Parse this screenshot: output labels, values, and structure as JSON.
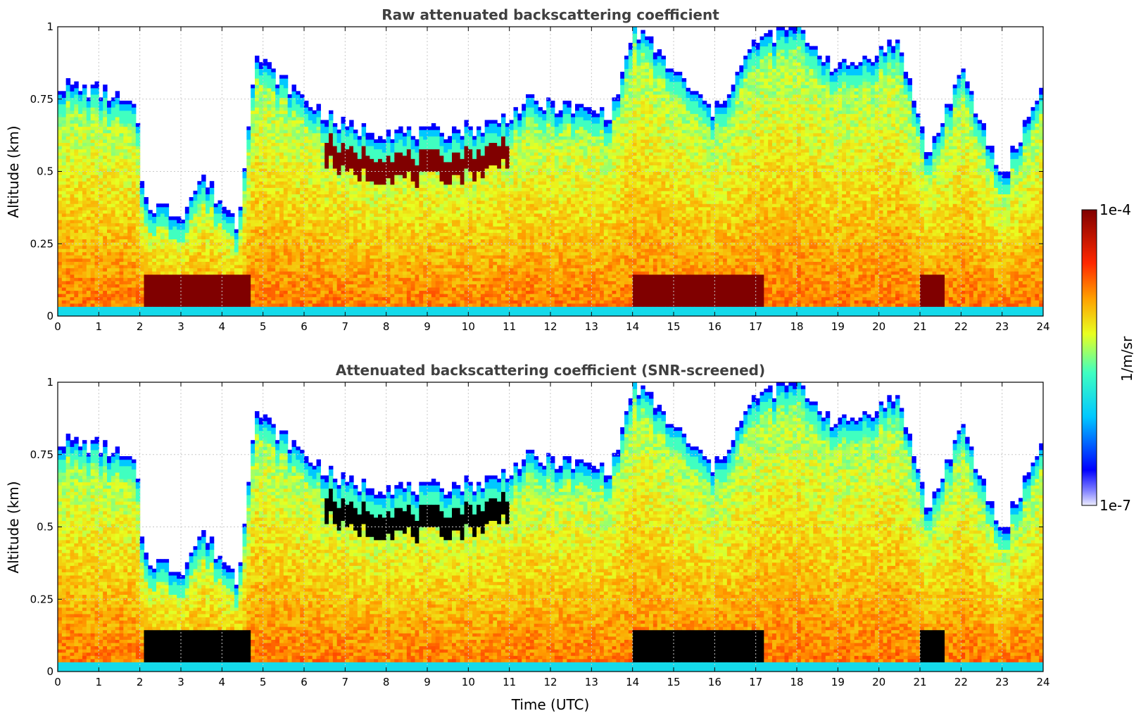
{
  "figure": {
    "xlabel": "Time (UTC)",
    "colorbar": {
      "label": "1/m/sr",
      "max_label": "1e-4",
      "min_label": "1e-7",
      "scale": "log"
    }
  },
  "chart_data": [
    {
      "type": "heatmap",
      "title": "Raw attenuated backscattering coefficient",
      "ylabel": "Altitude (km)",
      "xlabel": "",
      "xlim": [
        0,
        24
      ],
      "ylim": [
        0,
        1
      ],
      "xticks": [
        "0",
        "1",
        "2",
        "3",
        "4",
        "5",
        "6",
        "7",
        "8",
        "9",
        "10",
        "11",
        "12",
        "13",
        "14",
        "15",
        "16",
        "17",
        "18",
        "19",
        "20",
        "21",
        "22",
        "23",
        "24"
      ],
      "yticks": [
        "0",
        "0.25",
        "0.5",
        "0.75",
        "1"
      ],
      "grid": true,
      "saturated_color": "#800000",
      "approx_profile": {
        "x_hours": [
          0,
          1,
          1.9,
          2.1,
          3,
          3.5,
          4.4,
          4.8,
          6,
          7,
          9,
          10.5,
          11.5,
          13.5,
          14.05,
          15,
          16,
          17,
          18,
          19,
          20.5,
          21.2,
          22,
          23,
          24
        ],
        "cloud_top_km": [
          0.8,
          0.78,
          0.72,
          0.4,
          0.35,
          0.48,
          0.32,
          0.9,
          0.75,
          0.65,
          0.63,
          0.66,
          0.74,
          0.7,
          1.0,
          0.85,
          0.7,
          0.95,
          1.0,
          0.85,
          0.95,
          0.55,
          0.85,
          0.48,
          0.8
        ]
      }
    },
    {
      "type": "heatmap",
      "title": "Attenuated backscattering coefficient (SNR-screened)",
      "ylabel": "Altitude (km)",
      "xlabel": "Time (UTC)",
      "xlim": [
        0,
        24
      ],
      "ylim": [
        0,
        1
      ],
      "xticks": [
        "0",
        "1",
        "2",
        "3",
        "4",
        "5",
        "6",
        "7",
        "8",
        "9",
        "10",
        "11",
        "12",
        "13",
        "14",
        "15",
        "16",
        "17",
        "18",
        "19",
        "20",
        "21",
        "22",
        "23",
        "24"
      ],
      "yticks": [
        "0",
        "0.25",
        "0.5",
        "0.75",
        "1"
      ],
      "grid": true,
      "saturated_color": "#000000",
      "approx_profile": {
        "x_hours": [
          0,
          1,
          1.9,
          2.1,
          3,
          3.5,
          4.4,
          4.8,
          6,
          7,
          9,
          10.5,
          11.5,
          13.5,
          14.05,
          15,
          16,
          17,
          18,
          19,
          20.5,
          21.2,
          22,
          23,
          24
        ],
        "cloud_top_km": [
          0.8,
          0.78,
          0.72,
          0.4,
          0.35,
          0.48,
          0.32,
          0.9,
          0.75,
          0.65,
          0.63,
          0.66,
          0.74,
          0.7,
          1.0,
          0.85,
          0.7,
          0.95,
          1.0,
          0.85,
          0.95,
          0.55,
          0.85,
          0.48,
          0.8
        ]
      }
    }
  ]
}
